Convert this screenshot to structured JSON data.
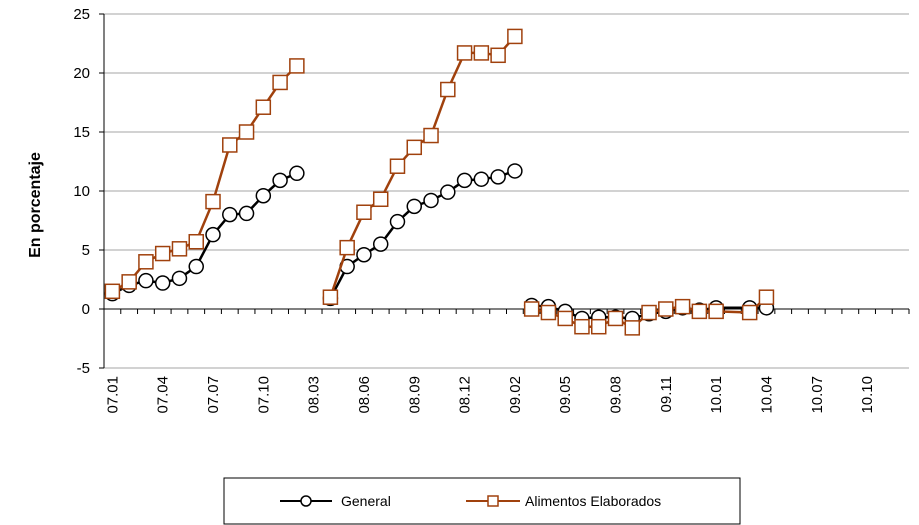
{
  "chart_data": {
    "type": "line",
    "title": "",
    "xlabel": "",
    "ylabel": "En porcentaje",
    "ylim": [
      -5,
      25
    ],
    "yticks": [
      -5,
      0,
      5,
      10,
      15,
      20,
      25
    ],
    "grid": true,
    "legend_position": "bottom",
    "x_tick_labels": [
      "07.01",
      "07.04",
      "07.07",
      "07.10",
      "08.03",
      "08.06",
      "08.09",
      "08.12",
      "09.02",
      "09.05",
      "09.08",
      "09.11",
      "10.01",
      "10.04",
      "10.07",
      "10.10"
    ],
    "series": [
      {
        "name": "General",
        "color": "#000000",
        "marker": "circle",
        "segments": [
          [
            [
              1,
              1.3
            ],
            [
              2,
              2.0
            ],
            [
              3,
              2.4
            ],
            [
              4,
              2.2
            ],
            [
              5,
              2.6
            ],
            [
              6,
              3.6
            ],
            [
              7,
              6.3
            ],
            [
              8,
              8.0
            ],
            [
              9,
              8.1
            ],
            [
              10,
              9.6
            ],
            [
              11,
              10.9
            ],
            [
              12,
              11.5
            ]
          ],
          [
            [
              14,
              0.9
            ],
            [
              15,
              3.6
            ],
            [
              16,
              4.6
            ],
            [
              17,
              5.5
            ],
            [
              18,
              7.4
            ],
            [
              19,
              8.7
            ],
            [
              20,
              9.2
            ],
            [
              21,
              9.9
            ],
            [
              22,
              10.9
            ],
            [
              23,
              11.0
            ],
            [
              24,
              11.2
            ],
            [
              25,
              11.7
            ]
          ],
          [
            [
              26,
              0.3
            ],
            [
              27,
              0.2
            ],
            [
              28,
              -0.2
            ],
            [
              29,
              -0.8
            ],
            [
              30,
              -0.7
            ],
            [
              31,
              -0.7
            ],
            [
              32,
              -0.8
            ],
            [
              33,
              -0.4
            ],
            [
              34,
              -0.2
            ],
            [
              35,
              0.1
            ],
            [
              36,
              -0.1
            ],
            [
              37,
              0.1
            ],
            [
              39,
              0.1
            ],
            [
              40,
              0.1
            ]
          ]
        ]
      },
      {
        "name": "Alimentos Elaborados",
        "color": "#A0410D",
        "marker": "square",
        "segments": [
          [
            [
              1,
              1.5
            ],
            [
              2,
              2.3
            ],
            [
              3,
              4.0
            ],
            [
              4,
              4.7
            ],
            [
              5,
              5.1
            ],
            [
              6,
              5.7
            ],
            [
              7,
              9.1
            ],
            [
              8,
              13.9
            ],
            [
              9,
              15.0
            ],
            [
              10,
              17.1
            ],
            [
              11,
              19.2
            ],
            [
              12,
              20.6
            ]
          ],
          [
            [
              14,
              1.0
            ],
            [
              15,
              5.2
            ],
            [
              16,
              8.2
            ],
            [
              17,
              9.3
            ],
            [
              18,
              12.1
            ],
            [
              19,
              13.7
            ],
            [
              20,
              14.7
            ],
            [
              21,
              18.6
            ],
            [
              22,
              21.7
            ],
            [
              23,
              21.7
            ],
            [
              24,
              21.5
            ],
            [
              25,
              23.1
            ]
          ],
          [
            [
              26,
              0.0
            ],
            [
              27,
              -0.3
            ],
            [
              28,
              -0.8
            ],
            [
              29,
              -1.5
            ],
            [
              30,
              -1.5
            ],
            [
              31,
              -0.8
            ],
            [
              32,
              -1.6
            ],
            [
              33,
              -0.3
            ],
            [
              34,
              0.0
            ],
            [
              35,
              0.2
            ],
            [
              36,
              -0.2
            ],
            [
              37,
              -0.2
            ],
            [
              39,
              -0.3
            ],
            [
              40,
              1.0
            ]
          ]
        ]
      }
    ]
  }
}
